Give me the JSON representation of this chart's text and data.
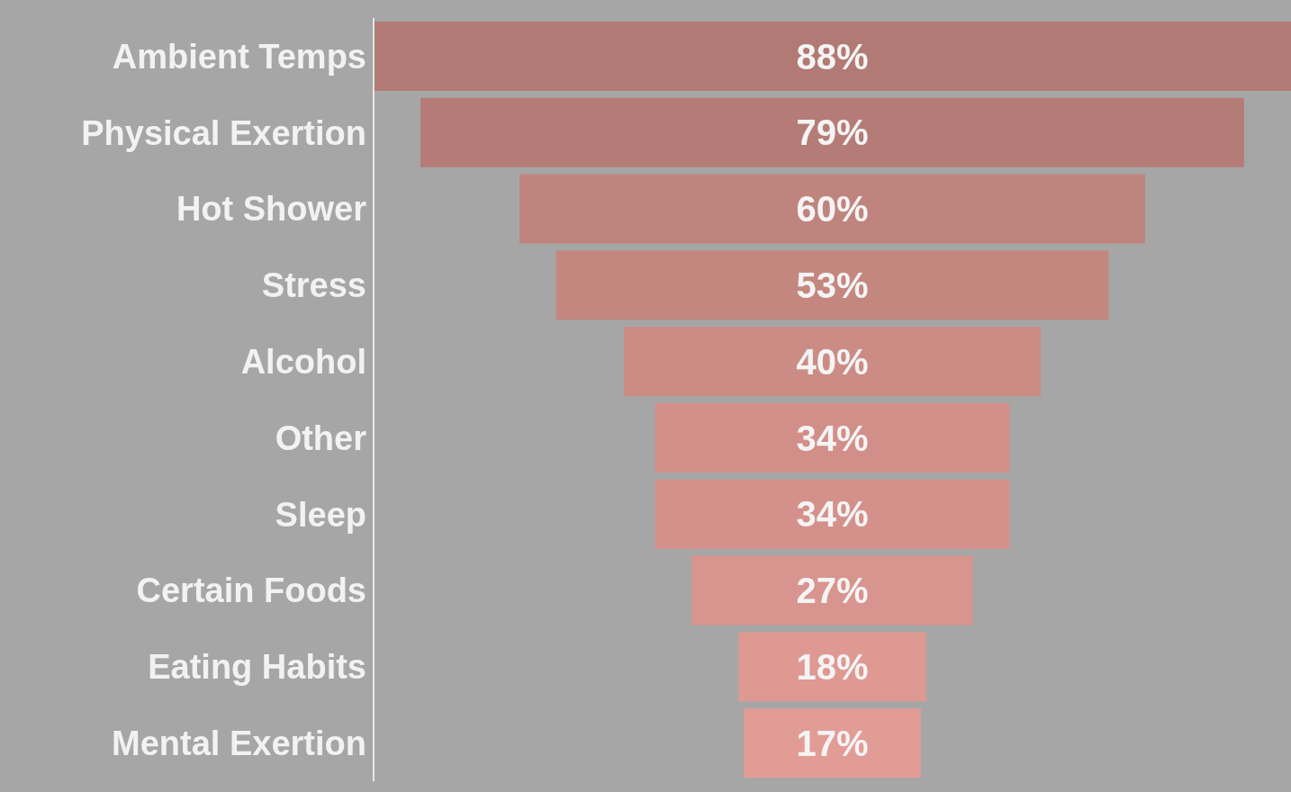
{
  "chart_data": {
    "type": "other",
    "categories": [
      "Ambient Temps",
      "Physical Exertion",
      "Hot Shower",
      "Stress",
      "Alcohol",
      "Other",
      "Sleep",
      "Certain Foods",
      "Eating Habits",
      "Mental Exertion"
    ],
    "values": [
      88,
      79,
      60,
      53,
      40,
      34,
      34,
      27,
      18,
      17
    ],
    "colors": [
      "#b27a74",
      "#b57c77",
      "#c0847e",
      "#c4877f",
      "#cc8c86",
      "#d28f89",
      "#d4918b",
      "#d8948e",
      "#de9993",
      "#e29c96"
    ],
    "value_labels": [
      "88%",
      "79%",
      "60%",
      "53%",
      "40%",
      "34%",
      "34%",
      "27%",
      "18%",
      "17%"
    ]
  }
}
